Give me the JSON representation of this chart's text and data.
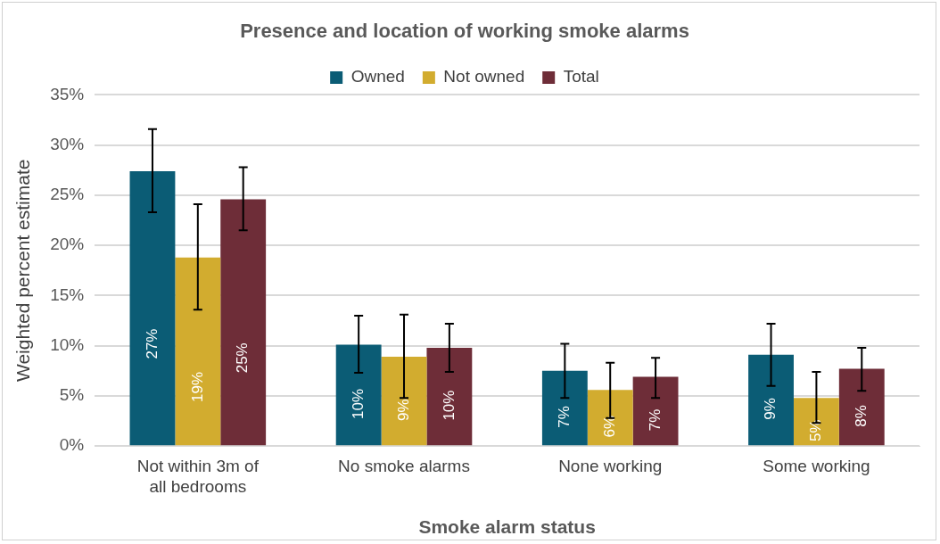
{
  "chart_data": {
    "type": "bar",
    "title": "Presence and location of working smoke alarms",
    "xlabel": "Smoke alarm status",
    "ylabel": "Weighted percent estimate",
    "categories": [
      "Not within 3m of all bedrooms",
      "No smoke alarms",
      "None working",
      "Some working"
    ],
    "series": [
      {
        "name": "Owned",
        "color": "#0b5c75",
        "values": [
          27.4,
          10.1,
          7.5,
          9.1
        ],
        "errors": [
          [
            23.3,
            31.6
          ],
          [
            7.3,
            13.0
          ],
          [
            4.8,
            10.2
          ],
          [
            6.0,
            12.2
          ]
        ],
        "value_labels": [
          "27%",
          "10%",
          "7%",
          "9%"
        ]
      },
      {
        "name": "Not owned",
        "color": "#d2ac2f",
        "values": [
          18.8,
          8.9,
          5.6,
          4.8
        ],
        "errors": [
          [
            13.6,
            24.1
          ],
          [
            4.8,
            13.1
          ],
          [
            2.8,
            8.3
          ],
          [
            2.3,
            7.4
          ]
        ],
        "value_labels": [
          "19%",
          "9%",
          "6%",
          "5%"
        ]
      },
      {
        "name": "Total",
        "color": "#6e2d38",
        "values": [
          24.6,
          9.8,
          6.9,
          7.7
        ],
        "errors": [
          [
            21.5,
            27.8
          ],
          [
            7.4,
            12.2
          ],
          [
            4.8,
            8.8
          ],
          [
            5.5,
            9.8
          ]
        ],
        "value_labels": [
          "25%",
          "10%",
          "7%",
          "8%"
        ]
      }
    ],
    "ylim": [
      0,
      35
    ],
    "yticks": [
      {
        "value": 0,
        "label": "0%"
      },
      {
        "value": 5,
        "label": "5%"
      },
      {
        "value": 10,
        "label": "10%"
      },
      {
        "value": 15,
        "label": "15%"
      },
      {
        "value": 20,
        "label": "20%"
      },
      {
        "value": 25,
        "label": "25%"
      },
      {
        "value": 30,
        "label": "30%"
      },
      {
        "value": 35,
        "label": "35%"
      }
    ],
    "grid": "y",
    "legend": "top"
  }
}
